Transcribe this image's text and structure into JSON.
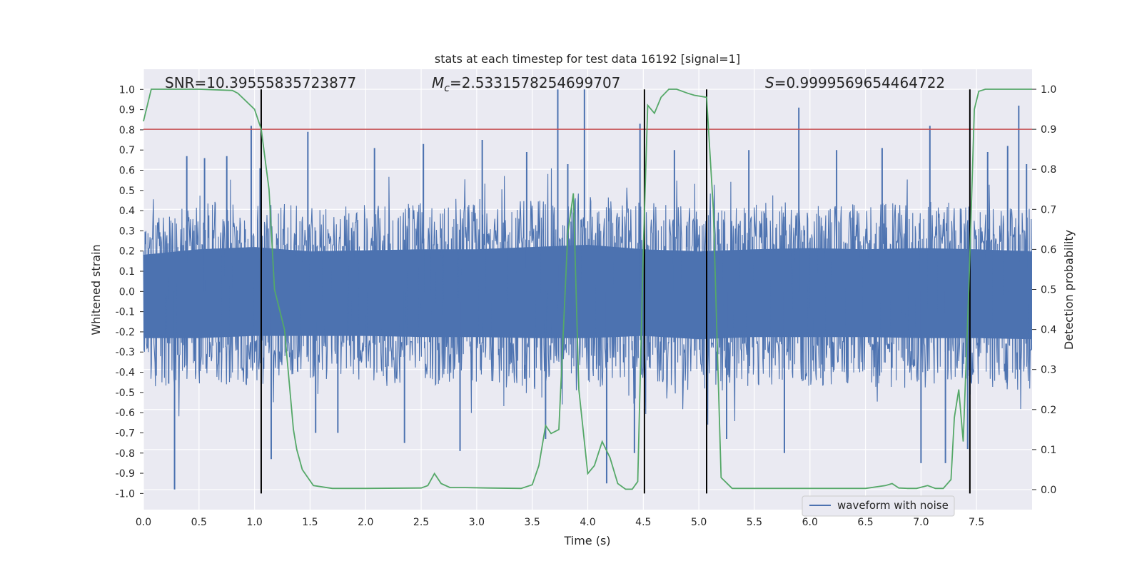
{
  "chart_data": {
    "type": "line",
    "title": "stats at each timestep for test data 16192 [signal=1]",
    "xlabel": "Time (s)",
    "ylabel": "Whitened strain",
    "y2label": "Detection probability",
    "xlim": [
      0,
      8.0
    ],
    "ylim": [
      -1.08,
      1.1
    ],
    "y2lim": [
      -0.05,
      1.05
    ],
    "xticks": [
      0.0,
      0.5,
      1.0,
      1.5,
      2.0,
      2.5,
      3.0,
      3.5,
      4.0,
      4.5,
      5.0,
      5.5,
      6.0,
      6.5,
      7.0,
      7.5
    ],
    "xtick_labels": [
      "0.0",
      "0.5",
      "1.0",
      "1.5",
      "2.0",
      "2.5",
      "3.0",
      "3.5",
      "4.0",
      "4.5",
      "5.0",
      "5.5",
      "6.0",
      "6.5",
      "7.0",
      "7.5"
    ],
    "yticks": [
      1.0,
      0.9,
      0.8,
      0.7,
      0.6,
      0.5,
      0.4,
      0.3,
      0.2,
      0.1,
      0.0,
      -0.1,
      -0.2,
      -0.3,
      -0.4,
      -0.5,
      -0.6,
      -0.7,
      -0.8,
      -0.9,
      -1.0
    ],
    "ytick_labels": [
      "1.0",
      "0.9",
      "0.8",
      "0.7",
      "0.6",
      "0.5",
      "0.4",
      "0.3",
      "0.2",
      "0.1",
      "0.0",
      "-0.1",
      "-0.2",
      "-0.3",
      "-0.4",
      "-0.5",
      "-0.6",
      "-0.7",
      "-0.8",
      "-0.9",
      "-1.0"
    ],
    "y2ticks": [
      1.0,
      0.9,
      0.8,
      0.7,
      0.6,
      0.5,
      0.4,
      0.3,
      0.2,
      0.1,
      0.0
    ],
    "y2tick_labels": [
      "1.0",
      "0.9",
      "0.8",
      "0.7",
      "0.6",
      "0.5",
      "0.4",
      "0.3",
      "0.2",
      "0.1",
      "0.0"
    ],
    "annotations": {
      "snr": "SNR=10.39555835723877",
      "mc_symbol": "M",
      "mc_sub": "c",
      "mc_value": "=2.5331578254699707",
      "s_symbol": "S",
      "s_value": "=0.9999569654464722"
    },
    "threshold": {
      "y2": 0.9,
      "color": "#c44e52"
    },
    "vertical_lines": [
      1.06,
      4.51,
      5.07,
      7.44
    ],
    "vertical_line_range": [
      -1.0,
      1.0
    ],
    "legend": {
      "label": "waveform with noise",
      "position": "lower-right"
    },
    "series": [
      {
        "name": "waveform with noise",
        "color": "#4c72b0",
        "envelope_x": [
          0.0,
          0.5,
          1.0,
          1.5,
          2.0,
          2.5,
          3.0,
          3.5,
          4.0,
          4.5,
          5.0,
          5.5,
          6.0,
          6.5,
          7.0,
          7.5,
          8.0
        ],
        "envelope_top": [
          0.33,
          0.38,
          0.4,
          0.36,
          0.37,
          0.38,
          0.38,
          0.4,
          0.42,
          0.38,
          0.36,
          0.38,
          0.39,
          0.38,
          0.39,
          0.38,
          0.36
        ],
        "envelope_bottom": [
          -0.42,
          -0.42,
          -0.4,
          -0.4,
          -0.4,
          -0.41,
          -0.41,
          -0.42,
          -0.42,
          -0.4,
          -0.43,
          -0.41,
          -0.41,
          -0.41,
          -0.42,
          -0.42,
          -0.43
        ],
        "peaks": [
          [
            0.28,
            -0.98
          ],
          [
            0.39,
            0.67
          ],
          [
            0.55,
            0.66
          ],
          [
            0.75,
            0.67
          ],
          [
            0.97,
            0.82
          ],
          [
            1.05,
            0.61
          ],
          [
            1.15,
            -0.83
          ],
          [
            1.48,
            0.79
          ],
          [
            1.55,
            -0.7
          ],
          [
            1.75,
            -0.7
          ],
          [
            2.08,
            0.71
          ],
          [
            2.35,
            -0.75
          ],
          [
            2.52,
            0.73
          ],
          [
            2.85,
            -0.79
          ],
          [
            3.05,
            0.75
          ],
          [
            3.45,
            0.69
          ],
          [
            3.62,
            -0.73
          ],
          [
            3.73,
            1.0
          ],
          [
            3.82,
            0.63
          ],
          [
            3.97,
            1.0
          ],
          [
            4.17,
            -0.95
          ],
          [
            4.42,
            -0.8
          ],
          [
            4.47,
            0.83
          ],
          [
            4.78,
            0.7
          ],
          [
            5.07,
            0.96
          ],
          [
            5.25,
            -0.73
          ],
          [
            5.45,
            0.7
          ],
          [
            5.77,
            -0.8
          ],
          [
            5.9,
            0.91
          ],
          [
            6.24,
            0.7
          ],
          [
            6.65,
            0.71
          ],
          [
            7.0,
            -0.85
          ],
          [
            7.08,
            0.82
          ],
          [
            7.22,
            -0.85
          ],
          [
            7.42,
            -0.78
          ],
          [
            7.6,
            0.69
          ],
          [
            7.78,
            0.72
          ],
          [
            7.88,
            0.92
          ],
          [
            7.95,
            0.63
          ]
        ]
      },
      {
        "name": "detection probability",
        "axis": "right",
        "color": "#55a868",
        "x": [
          0.0,
          0.07,
          0.2,
          0.5,
          0.8,
          0.85,
          1.0,
          1.06,
          1.13,
          1.18,
          1.27,
          1.35,
          1.38,
          1.43,
          1.48,
          1.53,
          1.7,
          2.0,
          2.5,
          2.56,
          2.62,
          2.68,
          2.76,
          2.9,
          3.1,
          3.4,
          3.5,
          3.56,
          3.62,
          3.67,
          3.74,
          3.82,
          3.87,
          3.92,
          4.0,
          4.06,
          4.13,
          4.2,
          4.27,
          4.34,
          4.4,
          4.45,
          4.5,
          4.54,
          4.6,
          4.66,
          4.73,
          4.8,
          4.9,
          4.96,
          5.07,
          5.13,
          5.2,
          5.3,
          5.5,
          5.75,
          6.0,
          6.5,
          6.68,
          6.74,
          6.8,
          6.88,
          6.96,
          7.06,
          7.13,
          7.2,
          7.27,
          7.3,
          7.34,
          7.38,
          7.43,
          7.48,
          7.52,
          7.58,
          7.7,
          8.0
        ],
        "y": [
          0.92,
          1.0,
          1.0,
          1.0,
          0.997,
          0.99,
          0.95,
          0.9,
          0.75,
          0.5,
          0.4,
          0.15,
          0.1,
          0.05,
          0.03,
          0.01,
          0.003,
          0.003,
          0.004,
          0.01,
          0.04,
          0.015,
          0.005,
          0.005,
          0.004,
          0.003,
          0.012,
          0.06,
          0.16,
          0.14,
          0.15,
          0.64,
          0.74,
          0.25,
          0.04,
          0.06,
          0.12,
          0.08,
          0.015,
          0.001,
          0.001,
          0.02,
          0.6,
          0.96,
          0.94,
          0.98,
          1.0,
          1.0,
          0.99,
          0.985,
          0.98,
          0.7,
          0.03,
          0.003,
          0.003,
          0.003,
          0.003,
          0.003,
          0.01,
          0.015,
          0.004,
          0.003,
          0.003,
          0.01,
          0.003,
          0.003,
          0.025,
          0.18,
          0.25,
          0.12,
          0.5,
          0.95,
          0.995,
          1.0,
          1.0,
          1.0
        ]
      }
    ]
  }
}
